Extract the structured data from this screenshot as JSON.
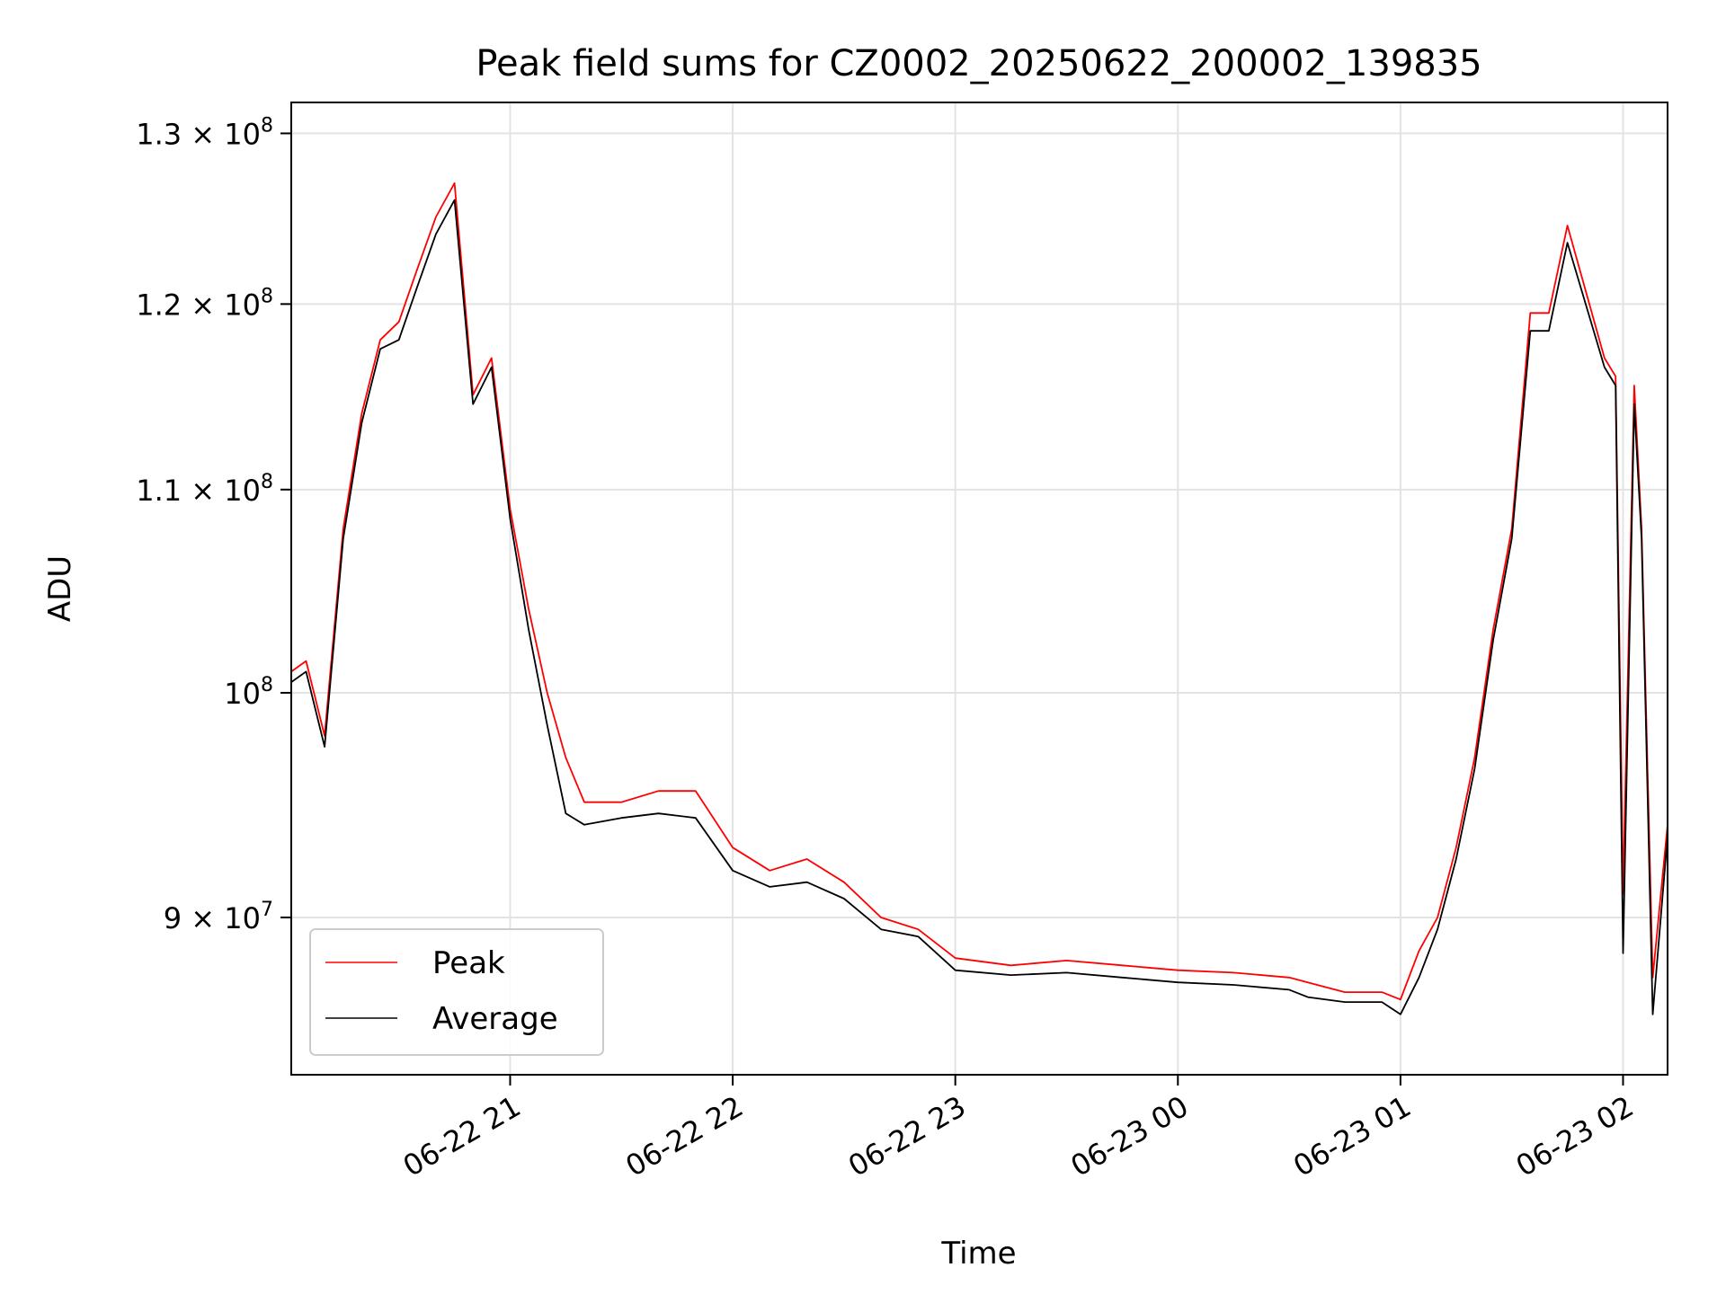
{
  "chart_data": {
    "type": "line",
    "title": "Peak field sums for CZ0002_20250622_200002_139835",
    "xlabel": "Time",
    "ylabel": "ADU",
    "yscale": "log",
    "grid": true,
    "legend_position": "lower-left",
    "xlim": [
      "2025-06-22 20:01",
      "2025-06-23 02:12"
    ],
    "ylim": [
      83600000,
      131900000
    ],
    "x_ticks": [
      "06-22 21",
      "06-22 22",
      "06-22 23",
      "06-23 00",
      "06-23 01",
      "06-23 02"
    ],
    "x_tick_times": [
      "2025-06-22 21:00",
      "2025-06-22 22:00",
      "2025-06-22 23:00",
      "2025-06-23 00:00",
      "2025-06-23 01:00",
      "2025-06-23 02:00"
    ],
    "y_ticks": [
      {
        "value": 130000000,
        "mantissa": "1.3",
        "exp": "8"
      },
      {
        "value": 120000000,
        "mantissa": "1.2",
        "exp": "8"
      },
      {
        "value": 110000000,
        "mantissa": "1.1",
        "exp": "8"
      },
      {
        "value": 100000000,
        "mantissa": "",
        "exp": "8"
      },
      {
        "value": 90000000,
        "mantissa": "9",
        "exp": "7"
      }
    ],
    "series": [
      {
        "name": "Peak",
        "color": "#ff0000",
        "x": [
          "2025-06-22 20:00",
          "2025-06-22 20:05",
          "2025-06-22 20:10",
          "2025-06-22 20:15",
          "2025-06-22 20:20",
          "2025-06-22 20:25",
          "2025-06-22 20:30",
          "2025-06-22 20:35",
          "2025-06-22 20:40",
          "2025-06-22 20:45",
          "2025-06-22 20:50",
          "2025-06-22 20:55",
          "2025-06-22 21:00",
          "2025-06-22 21:05",
          "2025-06-22 21:10",
          "2025-06-22 21:15",
          "2025-06-22 21:20",
          "2025-06-22 21:30",
          "2025-06-22 21:40",
          "2025-06-22 21:50",
          "2025-06-22 22:00",
          "2025-06-22 22:10",
          "2025-06-22 22:20",
          "2025-06-22 22:30",
          "2025-06-22 22:40",
          "2025-06-22 22:50",
          "2025-06-22 23:00",
          "2025-06-22 23:15",
          "2025-06-22 23:30",
          "2025-06-22 23:45",
          "2025-06-23 00:00",
          "2025-06-23 00:15",
          "2025-06-23 00:30",
          "2025-06-23 00:35",
          "2025-06-23 00:45",
          "2025-06-23 00:55",
          "2025-06-23 01:00",
          "2025-06-23 01:05",
          "2025-06-23 01:10",
          "2025-06-23 01:15",
          "2025-06-23 01:20",
          "2025-06-23 01:25",
          "2025-06-23 01:30",
          "2025-06-23 01:35",
          "2025-06-23 01:40",
          "2025-06-23 01:45",
          "2025-06-23 01:55",
          "2025-06-23 01:58",
          "2025-06-23 02:00",
          "2025-06-23 02:03",
          "2025-06-23 02:05",
          "2025-06-23 02:08",
          "2025-06-23 02:12"
        ],
        "y": [
          101000000,
          101500000,
          98000000,
          108000000,
          114000000,
          118000000,
          119000000,
          122000000,
          125000000,
          127000000,
          115000000,
          117000000,
          109000000,
          104000000,
          100000000,
          97000000,
          95000000,
          95000000,
          95500000,
          95500000,
          93000000,
          92000000,
          92500000,
          91500000,
          90000000,
          89500000,
          88300000,
          88000000,
          88200000,
          88000000,
          87800000,
          87700000,
          87500000,
          87300000,
          86900000,
          86900000,
          86600000,
          88600000,
          90000000,
          93000000,
          97000000,
          103000000,
          108000000,
          119500000,
          119500000,
          124500000,
          117000000,
          116000000,
          91000000,
          115500000,
          108000000,
          87500000,
          94000000
        ]
      },
      {
        "name": "Average",
        "color": "#000000",
        "x": [
          "2025-06-22 20:00",
          "2025-06-22 20:05",
          "2025-06-22 20:10",
          "2025-06-22 20:15",
          "2025-06-22 20:20",
          "2025-06-22 20:25",
          "2025-06-22 20:30",
          "2025-06-22 20:35",
          "2025-06-22 20:40",
          "2025-06-22 20:45",
          "2025-06-22 20:50",
          "2025-06-22 20:55",
          "2025-06-22 21:00",
          "2025-06-22 21:05",
          "2025-06-22 21:10",
          "2025-06-22 21:15",
          "2025-06-22 21:20",
          "2025-06-22 21:30",
          "2025-06-22 21:40",
          "2025-06-22 21:50",
          "2025-06-22 22:00",
          "2025-06-22 22:10",
          "2025-06-22 22:20",
          "2025-06-22 22:30",
          "2025-06-22 22:40",
          "2025-06-22 22:50",
          "2025-06-22 23:00",
          "2025-06-22 23:15",
          "2025-06-22 23:30",
          "2025-06-22 23:45",
          "2025-06-23 00:00",
          "2025-06-23 00:15",
          "2025-06-23 00:30",
          "2025-06-23 00:35",
          "2025-06-23 00:45",
          "2025-06-23 00:55",
          "2025-06-23 01:00",
          "2025-06-23 01:05",
          "2025-06-23 01:10",
          "2025-06-23 01:15",
          "2025-06-23 01:20",
          "2025-06-23 01:25",
          "2025-06-23 01:30",
          "2025-06-23 01:35",
          "2025-06-23 01:40",
          "2025-06-23 01:45",
          "2025-06-23 01:55",
          "2025-06-23 01:58",
          "2025-06-23 02:00",
          "2025-06-23 02:03",
          "2025-06-23 02:05",
          "2025-06-23 02:08",
          "2025-06-23 02:12"
        ],
        "y": [
          100500000,
          101000000,
          97500000,
          107500000,
          113500000,
          117500000,
          118000000,
          121000000,
          124000000,
          126000000,
          114500000,
          116500000,
          108500000,
          103000000,
          98500000,
          94500000,
          94000000,
          94300000,
          94500000,
          94300000,
          92000000,
          91300000,
          91500000,
          90800000,
          89500000,
          89200000,
          87800000,
          87600000,
          87700000,
          87500000,
          87300000,
          87200000,
          87000000,
          86700000,
          86500000,
          86500000,
          86000000,
          87500000,
          89500000,
          92500000,
          96500000,
          102500000,
          107500000,
          118500000,
          118500000,
          123500000,
          116500000,
          115500000,
          88500000,
          114500000,
          107500000,
          86000000,
          93500000
        ]
      }
    ]
  }
}
